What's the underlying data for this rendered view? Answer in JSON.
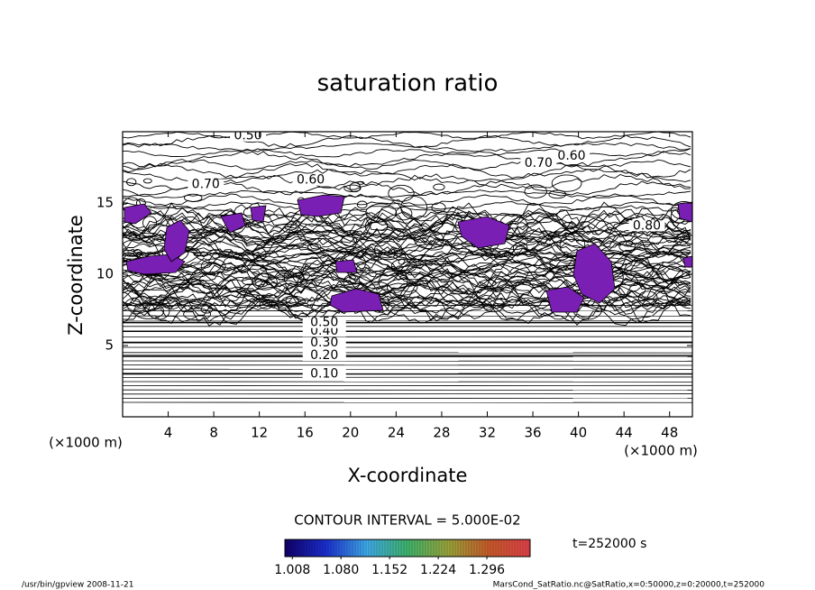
{
  "chart_data": {
    "type": "contour",
    "title": "saturation ratio",
    "xlabel": "X-coordinate",
    "ylabel": "Z-coordinate",
    "x_unit": "(×1000 m)",
    "xlim": [
      0,
      50
    ],
    "ylim": [
      0,
      20
    ],
    "xticks": [
      4,
      8,
      12,
      16,
      20,
      24,
      28,
      32,
      36,
      40,
      44,
      48
    ],
    "yticks": [
      5,
      10,
      15
    ],
    "level_lines": [
      {
        "label": "0.10",
        "x": 17.7,
        "z": 3.0
      },
      {
        "label": "0.20",
        "x": 17.7,
        "z": 4.3
      },
      {
        "label": "0.30",
        "x": 17.7,
        "z": 5.2
      },
      {
        "label": "0.40",
        "x": 17.7,
        "z": 6.0
      },
      {
        "label": "0.50",
        "x": 17.7,
        "z": 6.6
      }
    ],
    "contour_labels": [
      {
        "label": "0.50",
        "x": 11.0,
        "z": 19.7
      },
      {
        "label": "0.70",
        "x": 7.3,
        "z": 16.3
      },
      {
        "label": "0.60",
        "x": 16.5,
        "z": 16.6
      },
      {
        "label": "0.70",
        "x": 36.5,
        "z": 17.8
      },
      {
        "label": "0.60",
        "x": 39.4,
        "z": 18.3
      },
      {
        "label": "0.80",
        "x": 46.0,
        "z": 13.4
      }
    ],
    "contour_interval": "CONTOUR INTERVAL = 5.000E-02",
    "time_label": "t=252000 s",
    "colorbar": {
      "clim": [
        0.997,
        1.36
      ],
      "colors": [
        "#10006a",
        "#1b2fd0",
        "#3fa9e8",
        "#3fb36b",
        "#9aa33a",
        "#c85a2a",
        "#e0404a"
      ],
      "ticks": [
        1.008,
        {
          "value": 1.08,
          "label": "1.080"
        },
        1.152,
        1.224,
        1.296
      ]
    },
    "footer_left": "/usr/bin/gpview   2008-11-21",
    "footer_right": "MarsCond_SatRatio.nc@SatRatio,x=0:50000,z=0:20000,t=252000"
  }
}
